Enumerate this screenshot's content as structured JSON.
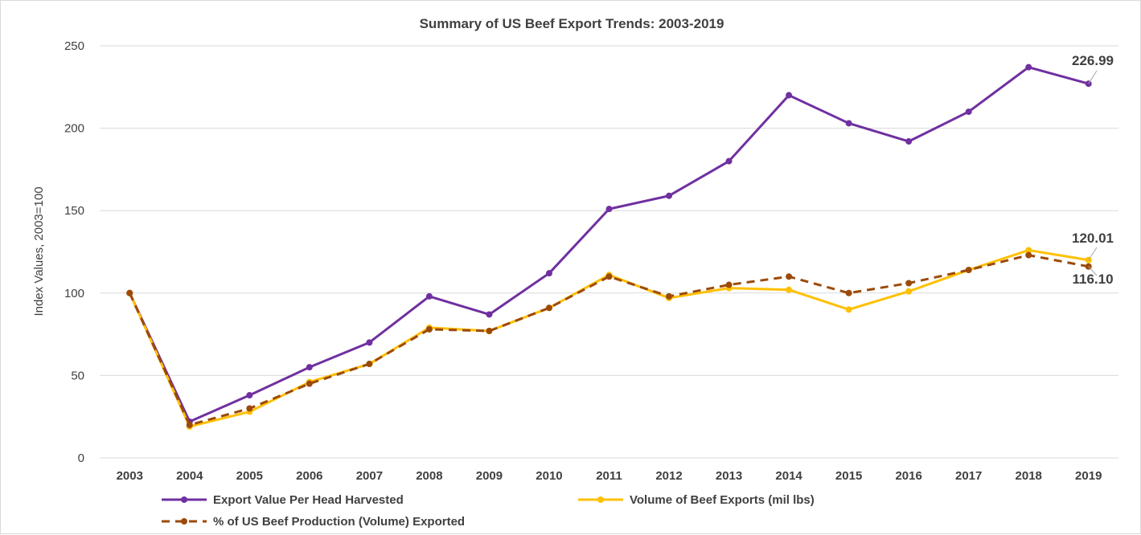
{
  "chart_data": {
    "type": "line",
    "title": "Summary of US Beef Export Trends: 2003-2019",
    "xlabel": "",
    "ylabel": "Index Values, 2003=100",
    "ylim": [
      0,
      250
    ],
    "yticks": [
      0,
      50,
      100,
      150,
      200,
      250
    ],
    "grid": true,
    "legend_position": "bottom",
    "categories": [
      "2003",
      "2004",
      "2005",
      "2006",
      "2007",
      "2008",
      "2009",
      "2010",
      "2011",
      "2012",
      "2013",
      "2014",
      "2015",
      "2016",
      "2017",
      "2018",
      "2019"
    ],
    "series": [
      {
        "name": "Export Value Per Head Harvested",
        "color": "#7030a0",
        "style": "solid",
        "values": [
          100,
          22,
          38,
          55,
          70,
          98,
          87,
          112,
          151,
          159,
          180,
          220,
          203,
          192,
          210,
          237,
          226.99
        ]
      },
      {
        "name": "Volume of Beef Exports (mil lbs)",
        "color": "#ffc000",
        "style": "solid",
        "values": [
          100,
          19,
          28,
          46,
          57,
          79,
          77,
          91,
          111,
          97,
          103,
          102,
          90,
          101,
          114,
          126,
          120.01
        ]
      },
      {
        "name": "% of US Beef Production (Volume) Exported",
        "color": "#9c4a0a",
        "style": "dashed",
        "values": [
          100,
          20,
          30,
          45,
          57,
          78,
          77,
          91,
          110,
          98,
          105,
          110,
          100,
          106,
          114,
          123,
          116.1
        ]
      }
    ],
    "annotations": [
      {
        "series": 0,
        "index": 16,
        "text": "226.99"
      },
      {
        "series": 1,
        "index": 16,
        "text": "120.01"
      },
      {
        "series": 2,
        "index": 16,
        "text": "116.10"
      }
    ]
  }
}
